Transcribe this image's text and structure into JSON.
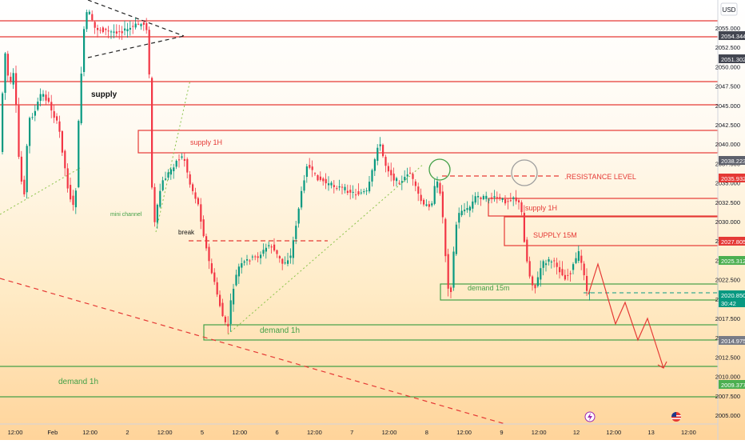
{
  "currency": "USD",
  "y_axis": {
    "ticks": [
      "2055.000",
      "2052.500",
      "2050.000",
      "2047.500",
      "2045.000",
      "2042.500",
      "2040.000",
      "2037.500",
      "2035.000",
      "2032.500",
      "2030.000",
      "2027.500",
      "2025.000",
      "2022.500",
      "2020.000",
      "2017.500",
      "2015.000",
      "2012.500",
      "2010.000",
      "2007.500",
      "2005.000"
    ],
    "badges": [
      {
        "label": "2054.344",
        "color": "#434651",
        "kind": "grey"
      },
      {
        "label": "2051.302",
        "color": "#434651",
        "kind": "grey"
      },
      {
        "label": "2038.223",
        "color": "#5d606b",
        "kind": "grey"
      },
      {
        "label": "2035.932",
        "color": "#e53935",
        "kind": "red"
      },
      {
        "label": "2027.805",
        "color": "#e53935",
        "kind": "red"
      },
      {
        "label": "2025.312",
        "color": "#4caf50",
        "kind": "green"
      },
      {
        "label": "2020.850",
        "color": "#089981",
        "kind": "teal"
      },
      {
        "label": "30:42",
        "color": "#089981",
        "kind": "teal"
      },
      {
        "label": "2014.975",
        "color": "#787b86",
        "kind": "grey"
      },
      {
        "label": "2009.377",
        "color": "#4caf50",
        "kind": "green"
      }
    ]
  },
  "x_axis": {
    "ticks": [
      "12:00",
      "Feb",
      "12:00",
      "2",
      "12:00",
      "5",
      "12:00",
      "6",
      "12:00",
      "7",
      "12:00",
      "8",
      "12:00",
      "9",
      "12:00",
      "12",
      "12:00",
      "13",
      "12:00"
    ]
  },
  "annotations": {
    "supply": "supply",
    "supply_1h_upper": "supply 1H",
    "mini_channel": "mini channel",
    "break": "break",
    "resistance_level": ".RESISTANCE LEVEL",
    "supply_1h_right": "supply 1H",
    "supply_15m": "SUPPLY 15M",
    "demand_15m": "demand 15m",
    "demand_1h_mid": "demand 1h",
    "demand_1h_left": "demand 1h"
  },
  "icons": {
    "events_icon": "lightning-event-icon",
    "flag_icon": "us-flag-icon"
  },
  "colors": {
    "up": "#089981",
    "down": "#f23645",
    "red_line": "#e53935",
    "green_line": "#43a047",
    "label_red": "#e53935",
    "label_green": "#4caf50"
  }
}
